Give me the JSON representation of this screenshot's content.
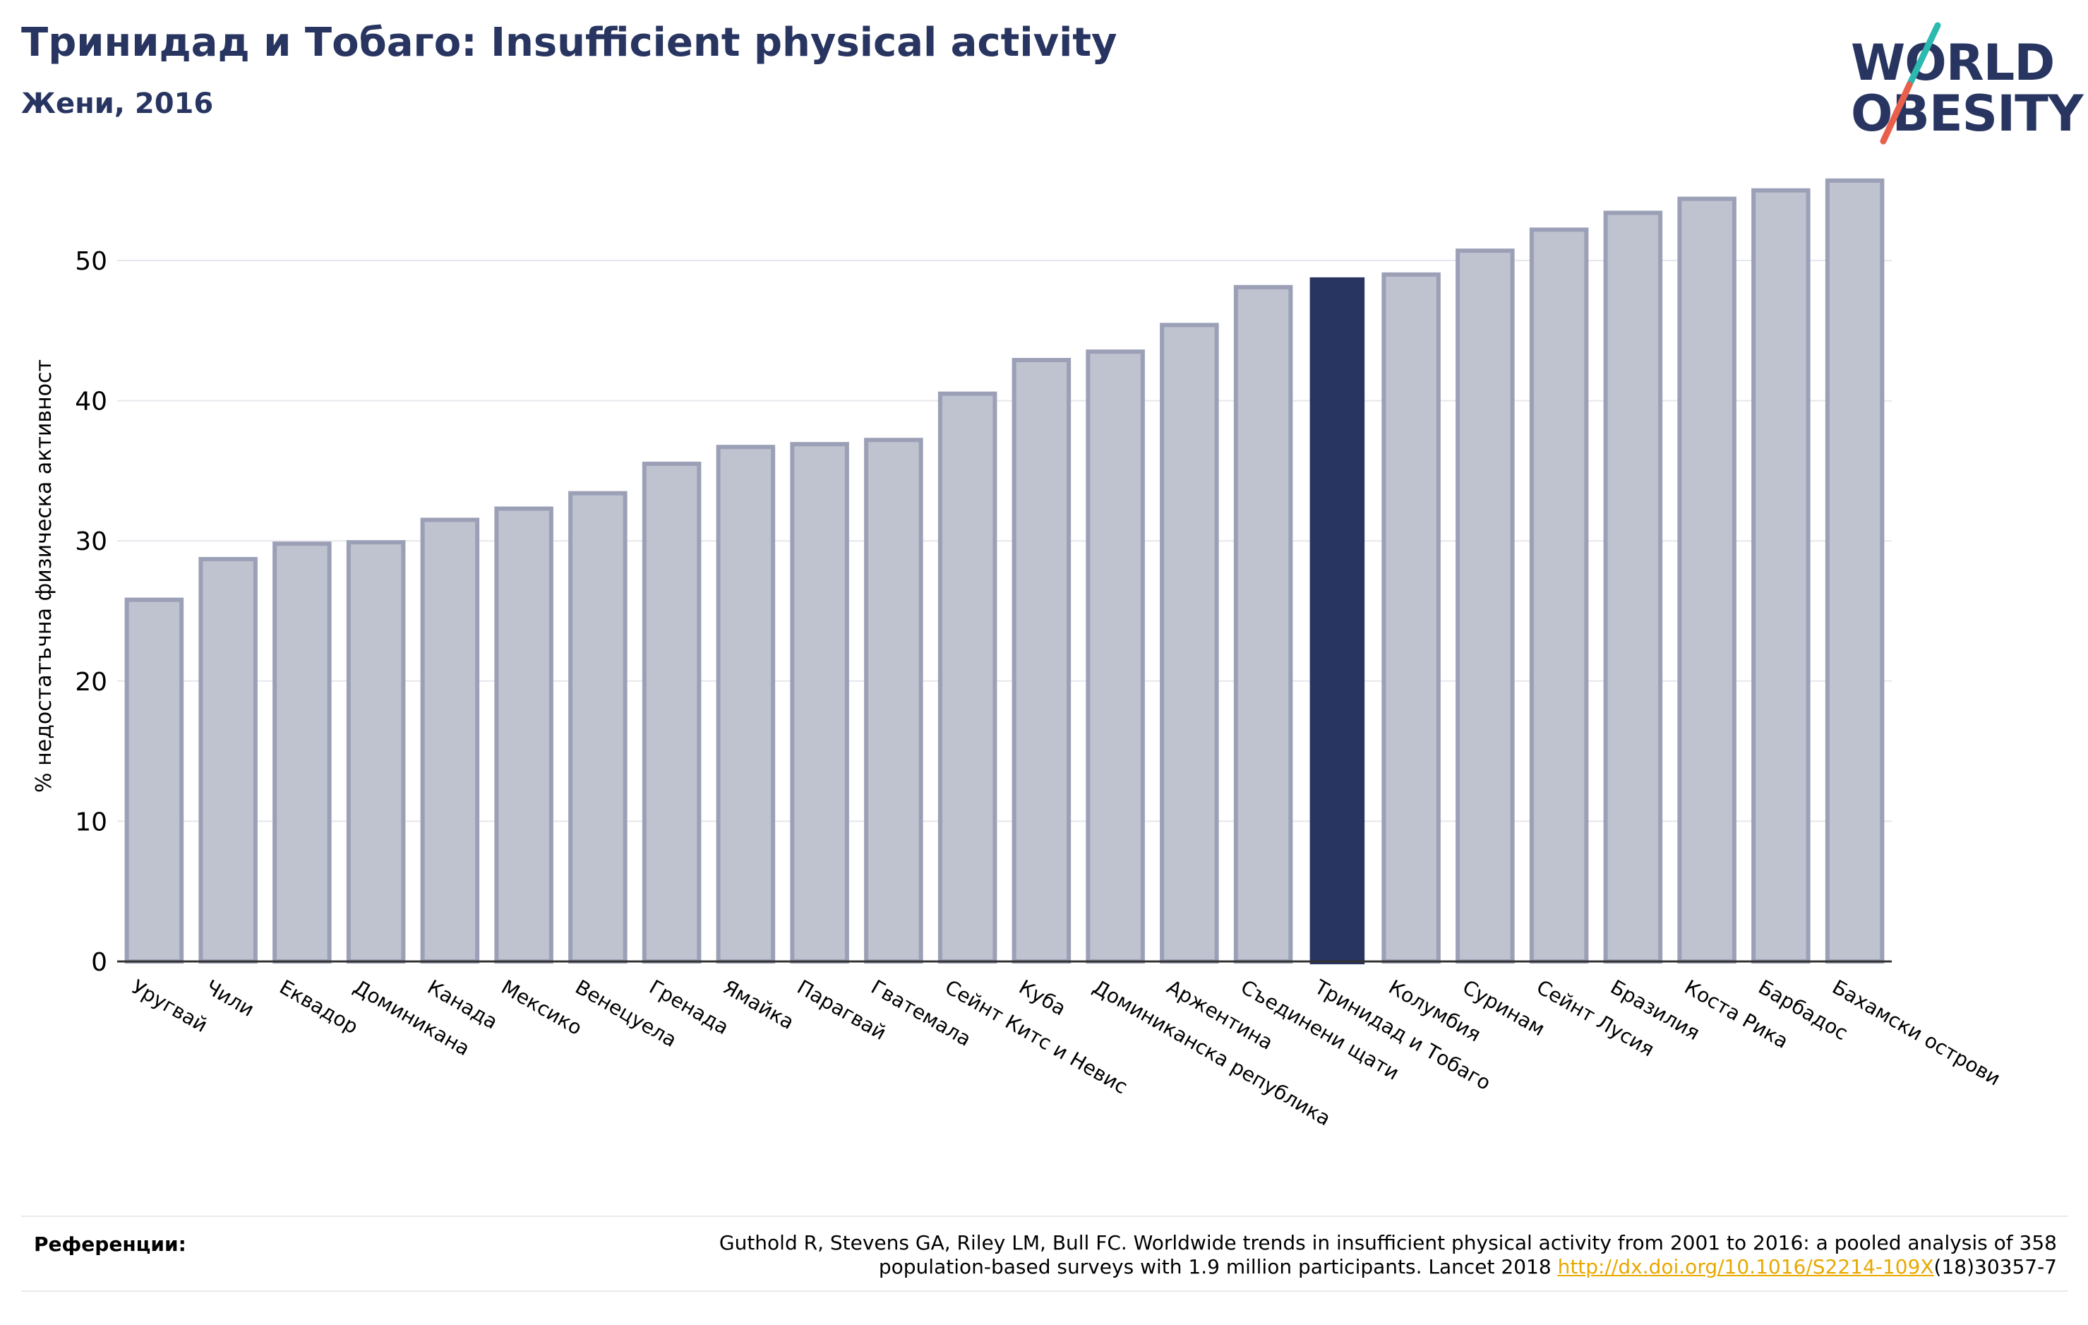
{
  "header": {
    "title": "Тринидад и Тобаго: Insufficient physical activity",
    "subtitle": "Жени, 2016"
  },
  "logo": {
    "line1": "WORLD",
    "line2": "OBESITY",
    "colors": {
      "text": "#283561",
      "slash_top": "#2bb9b0",
      "slash_bottom": "#e8604c"
    }
  },
  "references": {
    "label": "Референции:",
    "text_line1": "Guthold R, Stevens GA, Riley LM, Bull FC. Worldwide trends in insufficient physical activity from 2001 to 2016: a pooled analysis of 358",
    "text_line2_prefix": "population-based surveys with 1.9 million participants. Lancet 2018 ",
    "link_text": "http://dx.doi.org/10.1016/S2214-109X",
    "text_line2_suffix": "(18)30357-7"
  },
  "chart_data": {
    "type": "bar",
    "ylabel": "% недостатъчна физическа активност",
    "ylim": [
      0,
      57
    ],
    "yticks": [
      0,
      10,
      20,
      30,
      40,
      50
    ],
    "grid": true,
    "highlight": "Тринидад и Тобаго",
    "colors": {
      "bar": "#bfc2cf",
      "bar_edge": "#9ba0b6",
      "highlight": "#283561"
    },
    "categories": [
      "Уругвай",
      "Чили",
      "Еквадор",
      "Доминикана",
      "Канада",
      "Мексико",
      "Венецуела",
      "Гренада",
      "Ямайка",
      "Парагвай",
      "Гватемала",
      "Сейнт Китс и Невис",
      "Куба",
      "Доминиканска република",
      "Аржентина",
      "Съединени щати",
      "Тринидад и Тобаго",
      "Колумбия",
      "Суринам",
      "Сейнт Лусия",
      "Бразилия",
      "Коста Рика",
      "Барбадос",
      "Бахамски острови"
    ],
    "values": [
      25.8,
      28.7,
      29.8,
      29.9,
      31.5,
      32.3,
      33.4,
      35.5,
      36.7,
      36.9,
      37.2,
      40.5,
      42.9,
      43.5,
      45.4,
      48.1,
      48.8,
      49.0,
      50.7,
      52.2,
      53.4,
      54.4,
      55.0,
      55.7
    ]
  }
}
